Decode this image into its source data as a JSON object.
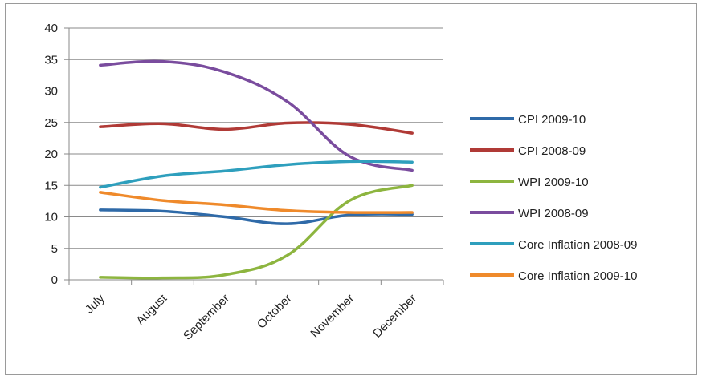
{
  "chart_data": {
    "type": "line",
    "categories": [
      "July",
      "August",
      "September",
      "October",
      "November",
      "December"
    ],
    "ylim": [
      0,
      40
    ],
    "yticks": [
      0,
      5,
      10,
      15,
      20,
      25,
      30,
      35,
      40
    ],
    "grid": true,
    "legend_position": "right",
    "series": [
      {
        "name": "CPI 2009-10",
        "color": "#2f6aa8",
        "values": [
          11.1,
          10.9,
          10.0,
          8.9,
          10.3,
          10.4
        ]
      },
      {
        "name": "CPI 2008-09",
        "color": "#b03a36",
        "values": [
          24.3,
          24.8,
          23.9,
          24.9,
          24.7,
          23.3
        ]
      },
      {
        "name": "WPI 2009-10",
        "color": "#8db53f",
        "values": [
          0.4,
          0.3,
          0.8,
          3.9,
          12.6,
          15.0
        ]
      },
      {
        "name": "WPI 2008-09",
        "color": "#7a4c9e",
        "values": [
          34.1,
          34.7,
          33.0,
          28.3,
          19.6,
          17.4
        ]
      },
      {
        "name": "Core Inflation 2008-09",
        "color": "#2e9fbd",
        "values": [
          14.7,
          16.5,
          17.3,
          18.3,
          18.8,
          18.7
        ]
      },
      {
        "name": "Core Inflation 2009-10",
        "color": "#ef8a2b",
        "values": [
          13.9,
          12.6,
          11.9,
          11.0,
          10.7,
          10.7
        ]
      }
    ]
  }
}
